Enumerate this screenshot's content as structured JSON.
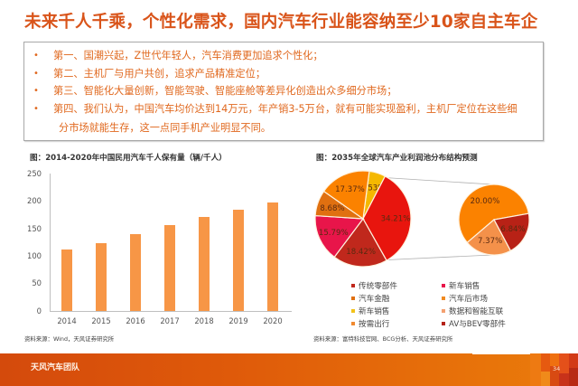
{
  "slide": {
    "title": "未来千人千乘，个性化需求，国内汽车行业能容纳至少10家自主车企",
    "page_number": "34",
    "footer_team": "天风汽车团队"
  },
  "bullets": [
    {
      "marker": "•",
      "text": "第一、国潮兴起，Z世代年轻人，汽车消费更加追求个性化；"
    },
    {
      "marker": "•",
      "text": "第二、主机厂与用户共创，追求产品精准定位；"
    },
    {
      "marker": "•",
      "text": "第三、智能化大量创新，智能驾驶、智能座舱等差异化创造出众多细分市场；"
    },
    {
      "marker": "•",
      "text": "第四、我们认为，中国汽车均价达到14万元，年产销3-5万台，就有可能实现盈利，主机厂定位在这些细",
      "continuation": "分市场就能生存，这一点同手机产业明显不同。"
    }
  ],
  "left_chart": {
    "title": "图：2014-2020年中国民用汽车千人保有量（辆/千人）",
    "source": "资料来源：Wind，天风证券研究所"
  },
  "right_chart": {
    "title": "图：2035年全球汽车产业利润池分布结构预测",
    "source": "资料来源：富特科技官网、BCG分析、天风证券研究所",
    "legend": [
      {
        "label": "传统零部件",
        "color": "#c0281c"
      },
      {
        "label": "新车销售",
        "color": "#e8154a"
      },
      {
        "label": "汽车金融",
        "color": "#e07010"
      },
      {
        "label": "汽车后市场",
        "color": "#f08a20"
      },
      {
        "label": "新车销售",
        "color": "#f2c21a"
      },
      {
        "label": "数据和智能互联",
        "color": "#f4a070"
      },
      {
        "label": "按需出行",
        "color": "#f08a30"
      },
      {
        "label": "AV与BEV零部件",
        "color": "#b42218"
      }
    ]
  },
  "chart_data": [
    {
      "type": "bar",
      "title": "图：2014-2020年中国民用汽车千人保有量（辆/千人）",
      "categories": [
        "2014",
        "2015",
        "2016",
        "2017",
        "2018",
        "2019",
        "2020"
      ],
      "values": [
        112,
        125,
        141,
        157,
        172,
        186,
        199
      ],
      "xlabel": "",
      "ylabel": "辆/千人",
      "ylim": [
        0,
        250
      ],
      "yticks": [
        "0",
        "50",
        "100",
        "150",
        "200",
        "250"
      ],
      "color": "#f79646",
      "grid": false,
      "legend": "none"
    },
    {
      "type": "pie",
      "subtype": "pie-of-pie",
      "title": "图：2035年全球汽车产业利润池分布结构预测",
      "main_pie": [
        {
          "label": "5.53%",
          "value": 5.53,
          "color": "#f5b800"
        },
        {
          "label": "34.21%",
          "value": 34.21,
          "color": "#e8150e",
          "note": "exploded into secondary pie"
        },
        {
          "label": "18.42%",
          "value": 18.42,
          "color": "#c0281c"
        },
        {
          "label": "15.79%",
          "value": 15.79,
          "color": "#e8154a"
        },
        {
          "label": "8.68%",
          "value": 8.68,
          "color": "#e07010"
        },
        {
          "label": "17.37%",
          "value": 17.37,
          "color": "#fb8200"
        }
      ],
      "secondary_pie": [
        {
          "label": "20.00%",
          "value": 20.0,
          "color": "#fb8200"
        },
        {
          "label": "6.84%",
          "value": 6.84,
          "color": "#b82216"
        },
        {
          "label": "7.37%",
          "value": 7.37,
          "color": "#f4914a"
        }
      ],
      "legend_position": "bottom",
      "legend": [
        "传统零部件",
        "新车销售",
        "汽车金融",
        "汽车后市场",
        "新车销售",
        "数据和智能互联",
        "按需出行",
        "AV与BEV零部件"
      ]
    }
  ]
}
